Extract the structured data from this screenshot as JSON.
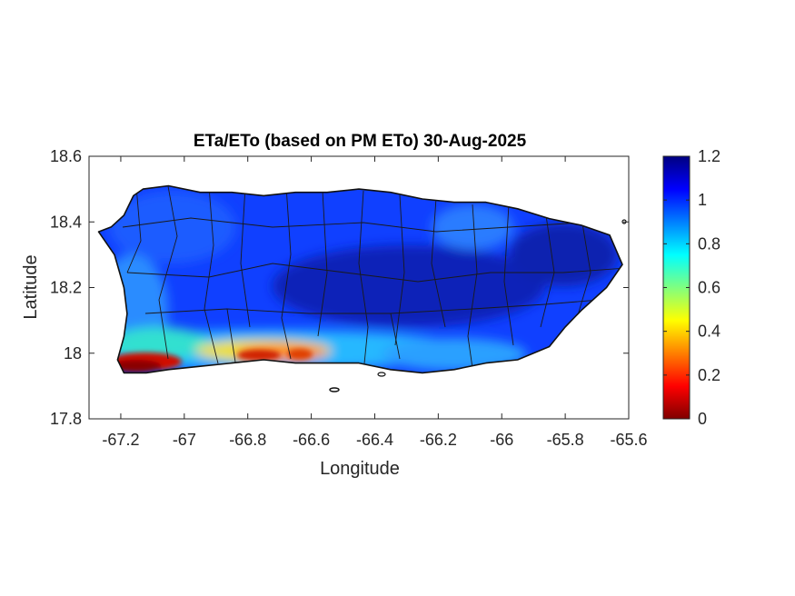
{
  "chart_data": {
    "type": "heatmap",
    "title": "ETa/ETo (based on PM ETo) 30-Aug-2025",
    "xlabel": "Longitude",
    "ylabel": "Latitude",
    "xlim": [
      -67.3,
      -65.6
    ],
    "ylim": [
      17.8,
      18.6
    ],
    "xticks": [
      -67.2,
      -67,
      -66.8,
      -66.6,
      -66.4,
      -66.2,
      -66,
      -65.8,
      -65.6
    ],
    "xtick_labels": [
      "-67.2",
      "-67",
      "-66.8",
      "-66.6",
      "-66.4",
      "-66.2",
      "-66",
      "-65.8",
      "-65.6"
    ],
    "yticks": [
      17.8,
      18,
      18.2,
      18.4,
      18.6
    ],
    "ytick_labels": [
      "17.8",
      "18",
      "18.2",
      "18.4",
      "18.6"
    ],
    "colormap": "jet",
    "clim": [
      0,
      1.2
    ],
    "colorbar_ticks": [
      0,
      0.2,
      0.4,
      0.6,
      0.8,
      1,
      1.2
    ],
    "colorbar_tick_labels": [
      "0",
      "0.2",
      "0.4",
      "0.6",
      "0.8",
      "1",
      "1.2"
    ],
    "grid": false,
    "island_outline": [
      [
        -67.27,
        18.37
      ],
      [
        -67.23,
        18.385
      ],
      [
        -67.19,
        18.42
      ],
      [
        -67.16,
        18.48
      ],
      [
        -67.13,
        18.5
      ],
      [
        -67.05,
        18.51
      ],
      [
        -66.95,
        18.49
      ],
      [
        -66.85,
        18.49
      ],
      [
        -66.75,
        18.48
      ],
      [
        -66.65,
        18.49
      ],
      [
        -66.55,
        18.49
      ],
      [
        -66.45,
        18.5
      ],
      [
        -66.35,
        18.49
      ],
      [
        -66.25,
        18.47
      ],
      [
        -66.15,
        18.46
      ],
      [
        -66.05,
        18.46
      ],
      [
        -65.95,
        18.44
      ],
      [
        -65.85,
        18.41
      ],
      [
        -65.75,
        18.39
      ],
      [
        -65.66,
        18.36
      ],
      [
        -65.62,
        18.27
      ],
      [
        -65.67,
        18.2
      ],
      [
        -65.75,
        18.13
      ],
      [
        -65.8,
        18.08
      ],
      [
        -65.85,
        18.02
      ],
      [
        -65.95,
        17.98
      ],
      [
        -66.05,
        17.97
      ],
      [
        -66.15,
        17.95
      ],
      [
        -66.25,
        17.94
      ],
      [
        -66.35,
        17.95
      ],
      [
        -66.45,
        17.97
      ],
      [
        -66.55,
        17.97
      ],
      [
        -66.65,
        17.97
      ],
      [
        -66.75,
        17.98
      ],
      [
        -66.85,
        17.97
      ],
      [
        -66.95,
        17.96
      ],
      [
        -67.05,
        17.95
      ],
      [
        -67.12,
        17.94
      ],
      [
        -67.19,
        17.94
      ],
      [
        -67.21,
        17.98
      ],
      [
        -67.19,
        18.05
      ],
      [
        -67.18,
        18.12
      ],
      [
        -67.19,
        18.2
      ],
      [
        -67.22,
        18.3
      ],
      [
        -67.27,
        18.37
      ]
    ],
    "value_regions": [
      {
        "region": "north-west and central interior",
        "value": 0.95
      },
      {
        "region": "central-east interior",
        "value": 1.1
      },
      {
        "region": "south coast",
        "value": 0.75
      },
      {
        "region": "south-west coast near -67.2 to -67.05",
        "value": 0.05
      },
      {
        "region": "south-central coast near -66.8 to -66.6",
        "value": 0.25
      }
    ]
  }
}
